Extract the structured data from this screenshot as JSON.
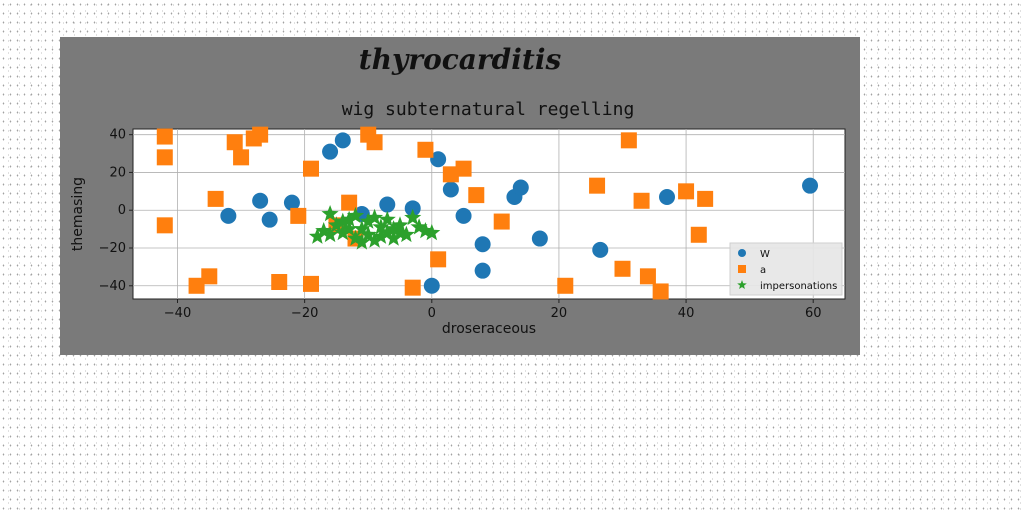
{
  "figure": {
    "suptitle": "thyrocarditis",
    "title": "wig subternatural regelling",
    "background": "#7a7a7a"
  },
  "chart_data": {
    "type": "scatter",
    "title": "wig subternatural regelling",
    "xlabel": "droseraceous",
    "ylabel": "themasing",
    "xlim": [
      -47,
      65
    ],
    "ylim": [
      -47,
      43
    ],
    "xticks": [
      -40,
      -20,
      0,
      20,
      40,
      60
    ],
    "yticks": [
      -40,
      -20,
      0,
      20,
      40
    ],
    "grid": true,
    "legend_position": "lower-right",
    "series": [
      {
        "name": "W",
        "marker": "circle",
        "color": "#1f77b4",
        "points": [
          [
            -32,
            -3
          ],
          [
            -27,
            5
          ],
          [
            -25.5,
            -5
          ],
          [
            -22,
            4
          ],
          [
            -16,
            31
          ],
          [
            -14,
            37
          ],
          [
            -11,
            -2
          ],
          [
            -7,
            3
          ],
          [
            -3,
            1
          ],
          [
            0,
            -40
          ],
          [
            1,
            27
          ],
          [
            3,
            11
          ],
          [
            5,
            -3
          ],
          [
            8,
            -18
          ],
          [
            8,
            -32
          ],
          [
            13,
            7
          ],
          [
            14,
            12
          ],
          [
            17,
            -15
          ],
          [
            26.5,
            -21
          ],
          [
            37,
            7
          ],
          [
            59.5,
            13
          ]
        ]
      },
      {
        "name": "a",
        "marker": "square",
        "color": "#ff7f0e",
        "points": [
          [
            -42,
            39
          ],
          [
            -42,
            28
          ],
          [
            -42,
            -8
          ],
          [
            -37,
            -40
          ],
          [
            -35,
            -35
          ],
          [
            -34,
            6
          ],
          [
            -31,
            36
          ],
          [
            -30,
            28
          ],
          [
            -28,
            38
          ],
          [
            -27,
            40
          ],
          [
            -24,
            -38
          ],
          [
            -21,
            -3
          ],
          [
            -19,
            22
          ],
          [
            -19,
            -39
          ],
          [
            -15,
            -8
          ],
          [
            -13,
            4
          ],
          [
            -12,
            -15
          ],
          [
            -10,
            40
          ],
          [
            -9,
            36
          ],
          [
            -3,
            -41
          ],
          [
            -1,
            32
          ],
          [
            1,
            -26
          ],
          [
            3,
            19
          ],
          [
            5,
            22
          ],
          [
            7,
            8
          ],
          [
            11,
            -6
          ],
          [
            21,
            -40
          ],
          [
            26,
            13
          ],
          [
            30,
            -31
          ],
          [
            31,
            37
          ],
          [
            33,
            5
          ],
          [
            34,
            -35
          ],
          [
            36,
            -43
          ],
          [
            40,
            10
          ],
          [
            42,
            -13
          ],
          [
            43,
            6
          ]
        ]
      },
      {
        "name": "impersonations",
        "marker": "star",
        "color": "#2ca02c",
        "points": [
          [
            -18,
            -14
          ],
          [
            -17,
            -11
          ],
          [
            -16,
            -13
          ],
          [
            -16,
            -2
          ],
          [
            -15,
            -8
          ],
          [
            -14,
            -12
          ],
          [
            -13,
            -5
          ],
          [
            -12,
            -15
          ],
          [
            -12,
            -3
          ],
          [
            -11,
            -10
          ],
          [
            -10,
            -6
          ],
          [
            -10,
            -13
          ],
          [
            -9,
            -4
          ],
          [
            -9,
            -16
          ],
          [
            -8,
            -9
          ],
          [
            -7,
            -12
          ],
          [
            -7,
            -5
          ],
          [
            -6,
            -15
          ],
          [
            -5,
            -8
          ],
          [
            -5,
            -12
          ],
          [
            -4,
            -13
          ],
          [
            -3,
            -4
          ],
          [
            -2,
            -9
          ],
          [
            -1,
            -11
          ],
          [
            0,
            -12
          ],
          [
            -13,
            -10
          ],
          [
            -11,
            -17
          ],
          [
            -8,
            -14
          ],
          [
            -14,
            -6
          ],
          [
            -6,
            -10
          ]
        ]
      }
    ]
  }
}
